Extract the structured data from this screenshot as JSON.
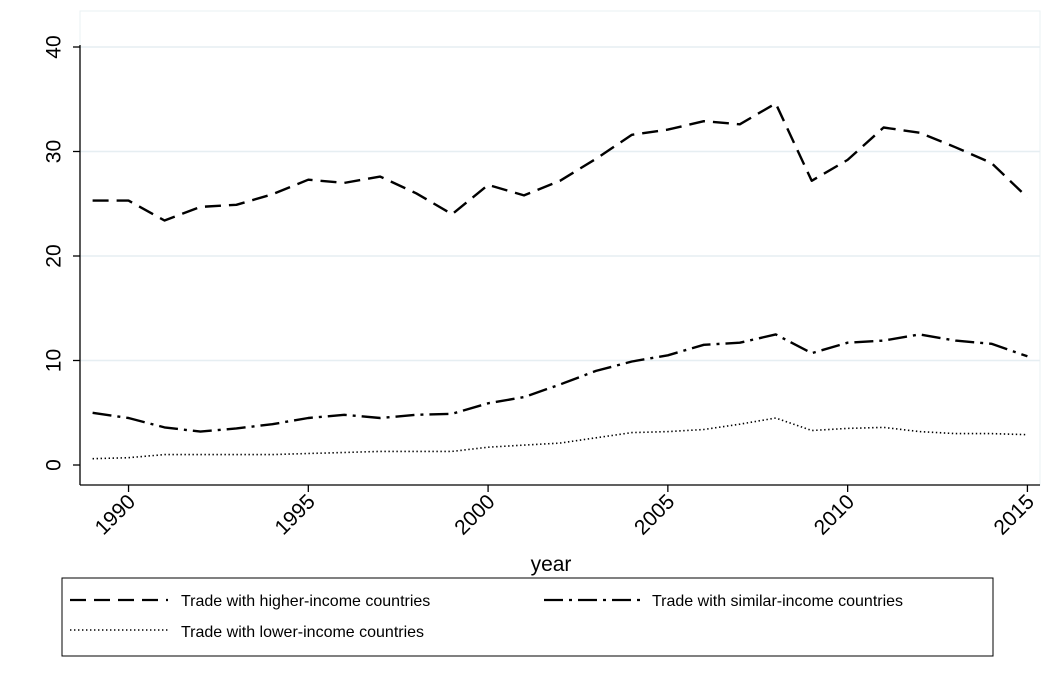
{
  "chart_data": {
    "type": "line",
    "title": "",
    "xlabel": "year",
    "ylabel": "",
    "xlim": [
      1989,
      2015
    ],
    "ylim": [
      0,
      40
    ],
    "x_ticks": [
      "1990",
      "1995",
      "2000",
      "2005",
      "2010",
      "2015"
    ],
    "y_ticks": [
      "0",
      "10",
      "20",
      "30",
      "40"
    ],
    "grid": "horizontal",
    "legend_position": "bottom",
    "x": [
      1989,
      1990,
      1991,
      1992,
      1993,
      1994,
      1995,
      1996,
      1997,
      1998,
      1999,
      2000,
      2001,
      2002,
      2003,
      2004,
      2005,
      2006,
      2007,
      2008,
      2009,
      2010,
      2011,
      2012,
      2013,
      2014,
      2015
    ],
    "series": [
      {
        "name": "Trade with higher-income countries",
        "style": "dashed",
        "values": [
          25.3,
          25.3,
          23.4,
          24.7,
          24.9,
          25.9,
          27.3,
          27.0,
          27.6,
          26.0,
          24.0,
          26.8,
          25.8,
          27.2,
          29.3,
          31.6,
          32.1,
          32.9,
          32.6,
          34.6,
          27.2,
          29.2,
          32.3,
          31.8,
          30.4,
          28.9,
          25.6
        ]
      },
      {
        "name": "Trade with similar-income countries",
        "style": "dash-dot",
        "values": [
          5.0,
          4.5,
          3.6,
          3.2,
          3.5,
          3.9,
          4.5,
          4.8,
          4.5,
          4.8,
          4.9,
          5.9,
          6.5,
          7.7,
          9.0,
          9.9,
          10.5,
          11.5,
          11.7,
          12.5,
          10.7,
          11.7,
          11.9,
          12.5,
          11.9,
          11.6,
          10.4
        ]
      },
      {
        "name": "Trade with lower-income countries",
        "style": "dotted",
        "values": [
          0.6,
          0.7,
          1.0,
          1.0,
          1.0,
          1.0,
          1.1,
          1.2,
          1.3,
          1.3,
          1.3,
          1.7,
          1.9,
          2.1,
          2.6,
          3.1,
          3.2,
          3.4,
          3.9,
          4.5,
          3.3,
          3.5,
          3.6,
          3.2,
          3.0,
          3.0,
          2.9
        ]
      }
    ],
    "colors": {
      "line": "#000000",
      "grid": "#e6eef2",
      "frame": "#000000"
    }
  }
}
